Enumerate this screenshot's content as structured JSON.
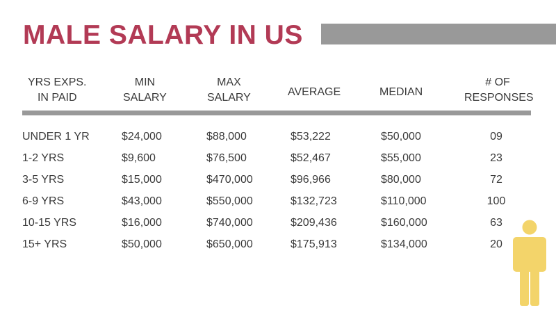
{
  "title": "MALE SALARY IN US",
  "colors": {
    "title": "#b23a55",
    "bar": "#999999",
    "text": "#3a3a3a",
    "figure": "#f3d46a"
  },
  "headers": [
    {
      "line1": "YRS EXPS.",
      "line2": "IN PAID"
    },
    {
      "line1": "MIN",
      "line2": "SALARY"
    },
    {
      "line1": "MAX",
      "line2": "SALARY"
    },
    {
      "line1": "AVERAGE",
      "line2": ""
    },
    {
      "line1": "MEDIAN",
      "line2": ""
    },
    {
      "line1": "# OF",
      "line2": "RESPONSES"
    }
  ],
  "rows": [
    [
      "UNDER 1 YR",
      "$24,000",
      "$88,000",
      "$53,222",
      "$50,000",
      "09"
    ],
    [
      "1-2 YRS",
      "$9,600",
      "$76,500",
      "$52,467",
      "$55,000",
      "23"
    ],
    [
      "3-5 YRS",
      "$15,000",
      "$470,000",
      "$96,966",
      "$80,000",
      "72"
    ],
    [
      "6-9 YRS",
      "$43,000",
      "$550,000",
      "$132,723",
      "$110,000",
      "100"
    ],
    [
      "10-15 YRS",
      "$16,000",
      "$740,000",
      "$209,436",
      "$160,000",
      "63"
    ],
    [
      "15+ YRS",
      "$50,000",
      "$650,000",
      "$175,913",
      "$134,000",
      "20"
    ]
  ],
  "icons": {
    "decoration": "person-icon"
  }
}
